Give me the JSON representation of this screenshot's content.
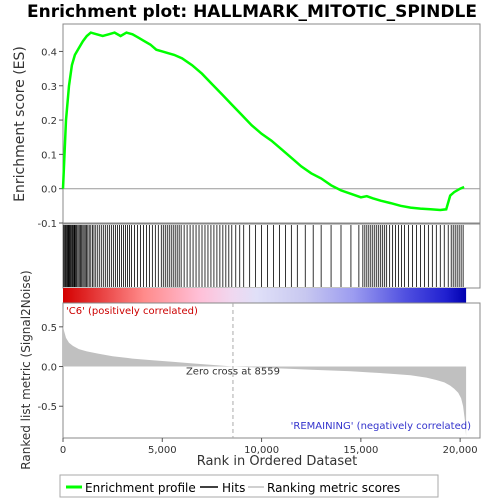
{
  "chart_data": [
    {
      "type": "line",
      "title": "Enrichment plot: HALLMARK_MITOTIC_SPINDLE",
      "ylabel": "Enrichment score (ES)",
      "xlim": [
        0,
        21000
      ],
      "ylim": [
        -0.1,
        0.48
      ],
      "yticks": [
        "-0.1",
        "0.0",
        "0.1",
        "0.2",
        "0.3",
        "0.4"
      ],
      "grid": true,
      "series": [
        {
          "color": "#00ff00",
          "x": [
            0,
            150,
            300,
            450,
            600,
            800,
            1000,
            1200,
            1400,
            1700,
            2000,
            2300,
            2600,
            2900,
            3200,
            3500,
            3800,
            4100,
            4400,
            4700,
            5000,
            5300,
            5600,
            6000,
            6500,
            7000,
            7500,
            8000,
            8500,
            9000,
            9500,
            10000,
            10500,
            11000,
            11500,
            12000,
            12500,
            13000,
            13500,
            14000,
            14500,
            15000,
            15300,
            15600,
            16000,
            16500,
            17000,
            17500,
            18000,
            18500,
            19000,
            19300,
            19500,
            19700,
            20000,
            20200
          ],
          "y": [
            0.0,
            0.2,
            0.3,
            0.36,
            0.39,
            0.41,
            0.43,
            0.445,
            0.455,
            0.45,
            0.445,
            0.45,
            0.455,
            0.445,
            0.455,
            0.45,
            0.44,
            0.43,
            0.42,
            0.405,
            0.4,
            0.395,
            0.39,
            0.38,
            0.36,
            0.335,
            0.305,
            0.275,
            0.245,
            0.215,
            0.185,
            0.16,
            0.14,
            0.115,
            0.09,
            0.065,
            0.045,
            0.03,
            0.01,
            -0.005,
            -0.015,
            -0.025,
            -0.022,
            -0.028,
            -0.035,
            -0.042,
            -0.05,
            -0.055,
            -0.058,
            -0.06,
            -0.062,
            -0.06,
            -0.02,
            -0.01,
            0.0,
            0.005
          ]
        }
      ]
    },
    {
      "type": "scatter",
      "hits": [
        40,
        90,
        130,
        180,
        220,
        260,
        300,
        340,
        380,
        420,
        470,
        510,
        560,
        600,
        650,
        700,
        760,
        820,
        880,
        940,
        1000,
        1060,
        1120,
        1180,
        1250,
        1320,
        1400,
        1480,
        1560,
        1650,
        1750,
        1850,
        1950,
        2050,
        2150,
        2250,
        2350,
        2450,
        2550,
        2650,
        2750,
        2850,
        2950,
        3050,
        3150,
        3250,
        3350,
        3450,
        3600,
        3750,
        3900,
        4050,
        4200,
        4350,
        4500,
        4650,
        4800,
        4950,
        5050,
        5150,
        5250,
        5350,
        5450,
        5550,
        5650,
        5750,
        5850,
        5950,
        6100,
        6250,
        6400,
        6550,
        6700,
        6850,
        7000,
        7150,
        7300,
        7450,
        7600,
        7750,
        7900,
        8050,
        8200,
        8350,
        8500,
        8700,
        8900,
        9100,
        9400,
        9700,
        10000,
        10300,
        10600,
        10900,
        11200,
        11500,
        11800,
        12200,
        12600,
        13000,
        13500,
        14000,
        14500,
        14900,
        15100,
        15200,
        15300,
        15400,
        15500,
        15600,
        15700,
        15800,
        15900,
        16000,
        16100,
        16200,
        16300,
        16450,
        16600,
        16750,
        16900,
        17050,
        17200,
        17400,
        17600,
        17800,
        18000,
        18200,
        18400,
        18600,
        18800,
        19000,
        19200,
        19400,
        19550,
        19650,
        19750,
        19850,
        19950,
        20050,
        20150
      ]
    },
    {
      "type": "area",
      "xlabel": "Rank in Ordered Dataset",
      "ylabel": "Ranked list metric (Signal2Noise)",
      "xlim": [
        0,
        21000
      ],
      "ylim": [
        -0.9,
        0.8
      ],
      "xticks": [
        "0",
        "5,000",
        "10,000",
        "15,000",
        "20,000"
      ],
      "yticks": [
        "-0.5",
        "0.0",
        "0.5"
      ],
      "color": "#c0c0c0",
      "x": [
        0,
        50,
        150,
        300,
        500,
        800,
        1200,
        1800,
        2500,
        3500,
        4500,
        5500,
        6500,
        7500,
        8559,
        9500,
        10500,
        11500,
        12500,
        13500,
        14500,
        15500,
        16500,
        17500,
        18300,
        18800,
        19200,
        19500,
        19700,
        19900,
        20050,
        20150,
        20250,
        20300
      ],
      "y": [
        0.52,
        0.45,
        0.36,
        0.3,
        0.26,
        0.22,
        0.19,
        0.16,
        0.13,
        0.1,
        0.08,
        0.06,
        0.04,
        0.02,
        0.0,
        -0.01,
        -0.02,
        -0.03,
        -0.04,
        -0.05,
        -0.06,
        -0.075,
        -0.09,
        -0.11,
        -0.14,
        -0.17,
        -0.2,
        -0.24,
        -0.28,
        -0.33,
        -0.4,
        -0.5,
        -0.7,
        -0.88
      ],
      "annotations": {
        "zero_cross": "Zero cross at 8559",
        "zero_cross_value": 8559,
        "positive": "'C6' (positively correlated)",
        "negative": "'REMAINING' (negatively correlated)"
      }
    }
  ],
  "legend": {
    "items": [
      "Enrichment profile",
      "Hits",
      "Ranking metric scores"
    ],
    "colors": [
      "#00ff00",
      "#000000",
      "#c0c0c0"
    ]
  }
}
